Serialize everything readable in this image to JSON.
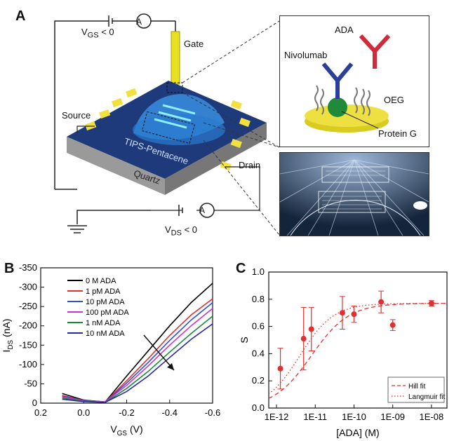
{
  "panel_a": {
    "letter": "A",
    "labels": {
      "vgs": "V",
      "vgs_sub": "GS",
      "vgs_tail": " < 0",
      "gate": "Gate",
      "source": "Source",
      "drain": "Drain",
      "tips": "TIPS-Pentacene",
      "quartz": "Quartz",
      "vds": "V",
      "vds_sub": "DS",
      "vds_tail": " < 0",
      "ammeter": "A"
    },
    "inset": {
      "ada": "ADA",
      "nivolumab": "Nivolumab",
      "oeg": "OEG",
      "protein_g": "Protein G"
    }
  },
  "panel_b": {
    "letter": "B",
    "chart_data": {
      "type": "line",
      "xlabel": "V",
      "xlabel_sub": "GS",
      "xlabel_unit": " (V)",
      "ylabel": "I",
      "ylabel_sub": "DS",
      "ylabel_unit": " (nA)",
      "xlim": [
        0.2,
        -0.6
      ],
      "ylim": [
        -350,
        0
      ],
      "xticks": [
        "0.2",
        "0.0",
        "-0.2",
        "-0.4",
        "-0.6"
      ],
      "xtick_values": [
        0.2,
        0.0,
        -0.2,
        -0.4,
        -0.6
      ],
      "yticks": [
        "-350",
        "-300",
        "-250",
        "-200",
        "-150",
        "-100",
        "-50",
        "0"
      ],
      "ytick_values": [
        -350,
        -300,
        -250,
        -200,
        -150,
        -100,
        -50,
        0
      ],
      "x": [
        -0.1,
        0.0,
        0.1,
        -0.2,
        -0.3,
        -0.4,
        -0.5,
        -0.6
      ],
      "series": [
        {
          "name": "0 M ADA",
          "color": "#000000",
          "values": [
            -3,
            -8,
            -25,
            -70,
            -135,
            -200,
            -260,
            -310
          ]
        },
        {
          "name": "1 pM ADA",
          "color": "#e0302a",
          "values": [
            -3,
            -7,
            -20,
            -58,
            -115,
            -175,
            -228,
            -270
          ]
        },
        {
          "name": "10 pM ADA",
          "color": "#2f4fd0",
          "values": [
            -3,
            -7,
            -18,
            -52,
            -105,
            -162,
            -215,
            -260
          ]
        },
        {
          "name": "100 pM ADA",
          "color": "#cc33cc",
          "values": [
            -3,
            -6,
            -16,
            -46,
            -96,
            -150,
            -200,
            -245
          ]
        },
        {
          "name": "1 nM ADA",
          "color": "#1a8a3a",
          "values": [
            -2,
            -5,
            -13,
            -38,
            -82,
            -132,
            -180,
            -225
          ]
        },
        {
          "name": "10 nM ADA",
          "color": "#2a2aa0",
          "values": [
            -2,
            -4,
            -10,
            -30,
            -70,
            -118,
            -165,
            -205
          ]
        }
      ]
    }
  },
  "panel_c": {
    "letter": "C",
    "chart_data": {
      "type": "scatter",
      "xlabel": "[ADA] (M)",
      "ylabel": "S",
      "log_x": true,
      "xlim_exp": [
        -12.2,
        -7.6
      ],
      "ylim": [
        0.0,
        1.0
      ],
      "xticks": [
        "1E-12",
        "1E-11",
        "1E-10",
        "1E-09",
        "1E-08"
      ],
      "xtick_exps": [
        -12,
        -11,
        -10,
        -9,
        -8
      ],
      "yticks": [
        "0.0",
        "0.2",
        "0.4",
        "0.6",
        "0.8",
        "1.0"
      ],
      "ytick_values": [
        0.0,
        0.2,
        0.4,
        0.6,
        0.8,
        1.0
      ],
      "points": [
        {
          "x_exp": -11.9,
          "y": 0.29,
          "err": 0.15
        },
        {
          "x_exp": -11.3,
          "y": 0.51,
          "err": 0.23
        },
        {
          "x_exp": -11.1,
          "y": 0.58,
          "err": 0.16
        },
        {
          "x_exp": -10.3,
          "y": 0.7,
          "err": 0.12
        },
        {
          "x_exp": -10.0,
          "y": 0.69,
          "err": 0.06
        },
        {
          "x_exp": -9.3,
          "y": 0.78,
          "err": 0.08
        },
        {
          "x_exp": -9.0,
          "y": 0.61,
          "err": 0.04
        },
        {
          "x_exp": -8.0,
          "y": 0.77,
          "err": 0.02
        }
      ],
      "legend": [
        {
          "name": "Hill fit",
          "style": "dashed"
        },
        {
          "name": "Langmuir fit",
          "style": "dotted"
        }
      ],
      "color": "#e03030"
    }
  }
}
